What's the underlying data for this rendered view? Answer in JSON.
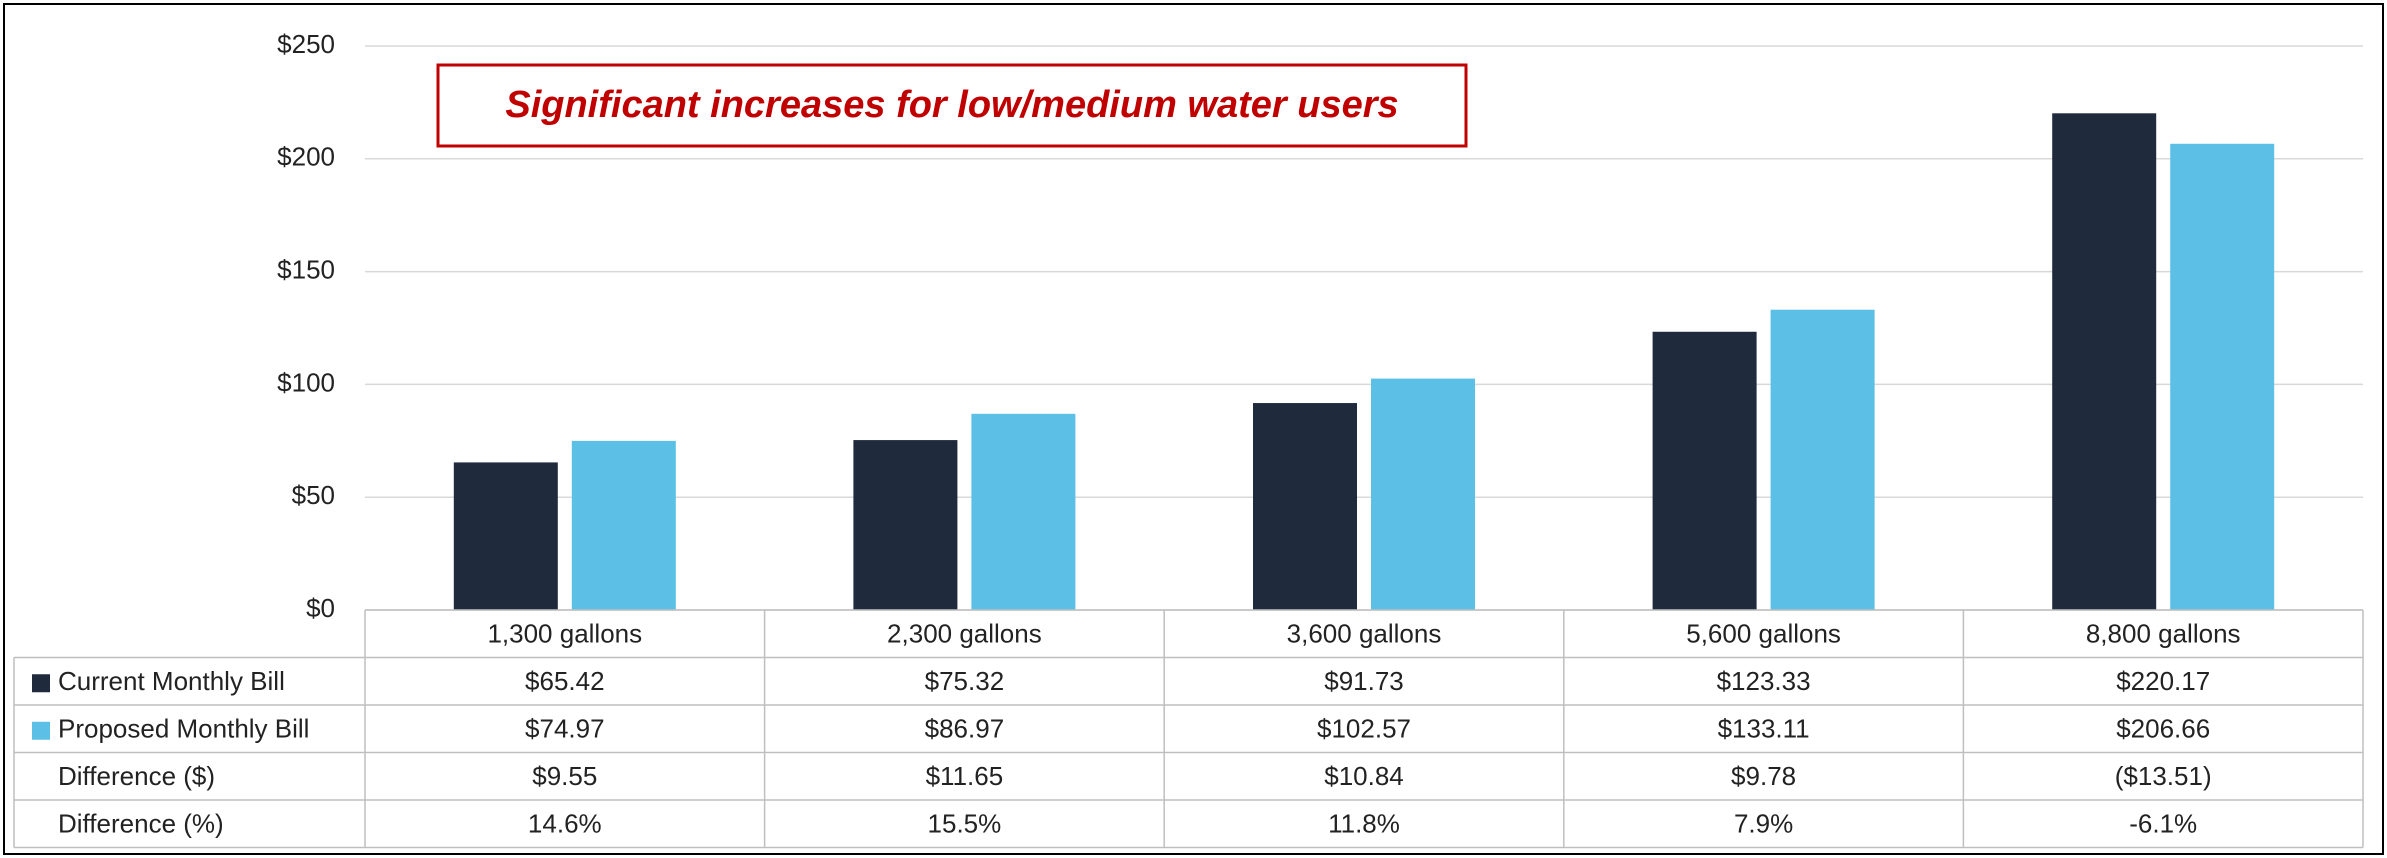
{
  "chart_data": {
    "type": "bar",
    "annotation": "Significant increases for low/medium water users",
    "categories": [
      "1,300 gallons",
      "2,300 gallons",
      "3,600 gallons",
      "5,600 gallons",
      "8,800 gallons"
    ],
    "series": [
      {
        "name": "Current Monthly Bill",
        "color": "#1f2a3d",
        "values": [
          65.42,
          75.32,
          91.73,
          123.33,
          220.17
        ],
        "value_labels": [
          "$65.42",
          "$75.32",
          "$91.73",
          "$123.33",
          "$220.17"
        ]
      },
      {
        "name": "Proposed Monthly Bill",
        "color": "#5bbfe6",
        "values": [
          74.97,
          86.97,
          102.57,
          133.11,
          206.66
        ],
        "value_labels": [
          "$74.97",
          "$86.97",
          "$102.57",
          "$133.11",
          "$206.66"
        ]
      }
    ],
    "rows": [
      {
        "name": "Difference ($)",
        "values": [
          9.55,
          11.65,
          10.84,
          9.78,
          -13.51
        ],
        "value_labels": [
          "$9.55",
          "$11.65",
          "$10.84",
          "$9.78",
          "($13.51)"
        ]
      },
      {
        "name": "Difference (%)",
        "values": [
          14.6,
          15.5,
          11.8,
          7.9,
          -6.1
        ],
        "value_labels": [
          "14.6%",
          "15.5%",
          "11.8%",
          "7.9%",
          "-6.1%"
        ]
      }
    ],
    "ylim": [
      0,
      250
    ],
    "yticks": [
      {
        "value": 0,
        "label": "$0"
      },
      {
        "value": 50,
        "label": "$50"
      },
      {
        "value": 100,
        "label": "$100"
      },
      {
        "value": 150,
        "label": "$150"
      },
      {
        "value": 200,
        "label": "$200"
      },
      {
        "value": 250,
        "label": "$250"
      }
    ],
    "grid": true
  }
}
